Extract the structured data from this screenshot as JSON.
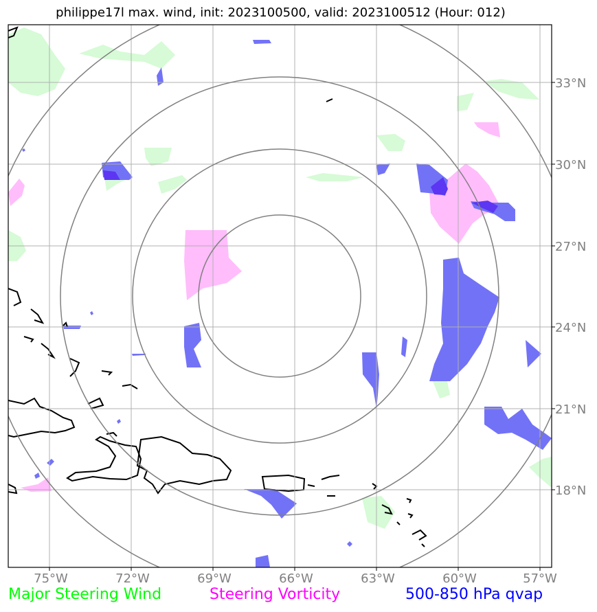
{
  "title": "philippe17l max. wind, init: 2023100500, valid: 2023100512 (Hour: 012)",
  "lon_labels": [
    "75°W",
    "72°W",
    "69°W",
    "66°W",
    "63°W",
    "60°W",
    "57°W"
  ],
  "lat_labels": [
    "33°N",
    "30°N",
    "27°N",
    "24°N",
    "21°N",
    "18°N"
  ],
  "legend": {
    "wind": {
      "label": "Major Steering Wind",
      "color": "#00ff00"
    },
    "vorticity": {
      "label": "Steering Vorticity",
      "color": "#ff00ff"
    },
    "qvap": {
      "label": "500-850 hPa qvap",
      "color": "#0000ff"
    }
  },
  "colors": {
    "wind_fill": "#d6fbd6",
    "vort_fill": "#ffbdfb",
    "qvap_fill": "#7272f7",
    "qvap_dark": "#5c36f2",
    "range_ring": "#808080",
    "grid": "#b0b0b0",
    "tick_label": "#808080",
    "coastline": "#000000"
  }
}
